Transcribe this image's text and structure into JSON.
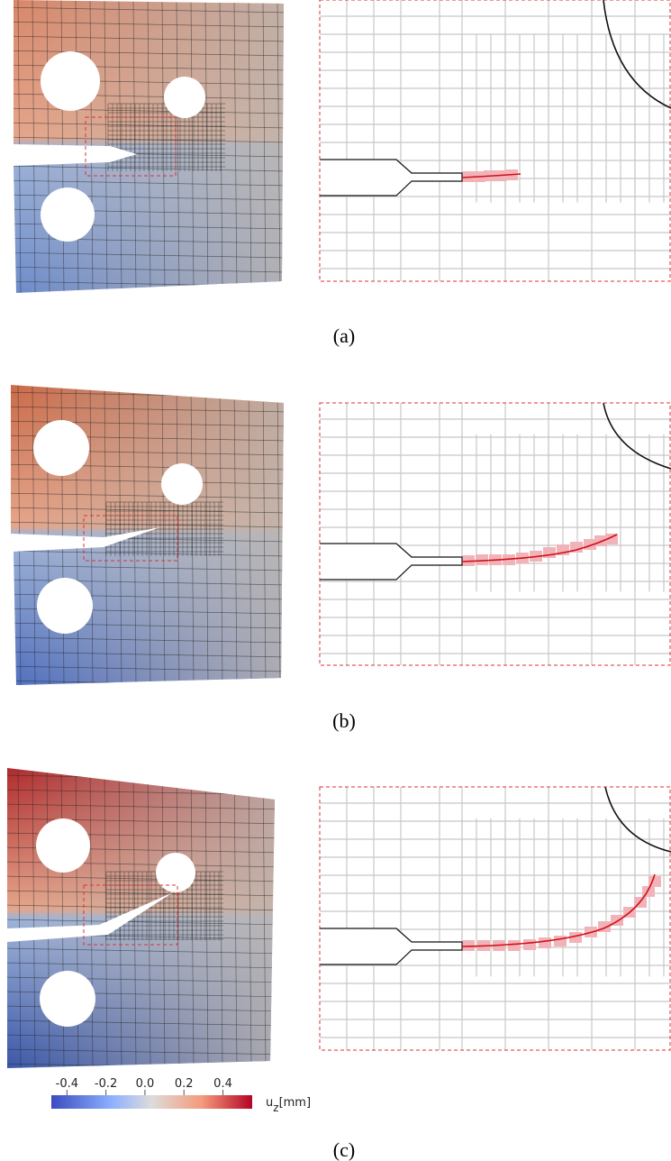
{
  "figure": {
    "panels": [
      {
        "label": "(a)"
      },
      {
        "label": "(b)"
      },
      {
        "label": "(c)"
      }
    ],
    "colorbar": {
      "lim": [
        -0.48,
        0.55
      ],
      "ticks": [
        -0.4,
        -0.2,
        {
          "value": 0,
          "label": "0.0"
        },
        0.2,
        0.4
      ],
      "label": {
        "symbol": "u",
        "subscript": "z",
        "unit": "[mm]"
      }
    }
  }
}
